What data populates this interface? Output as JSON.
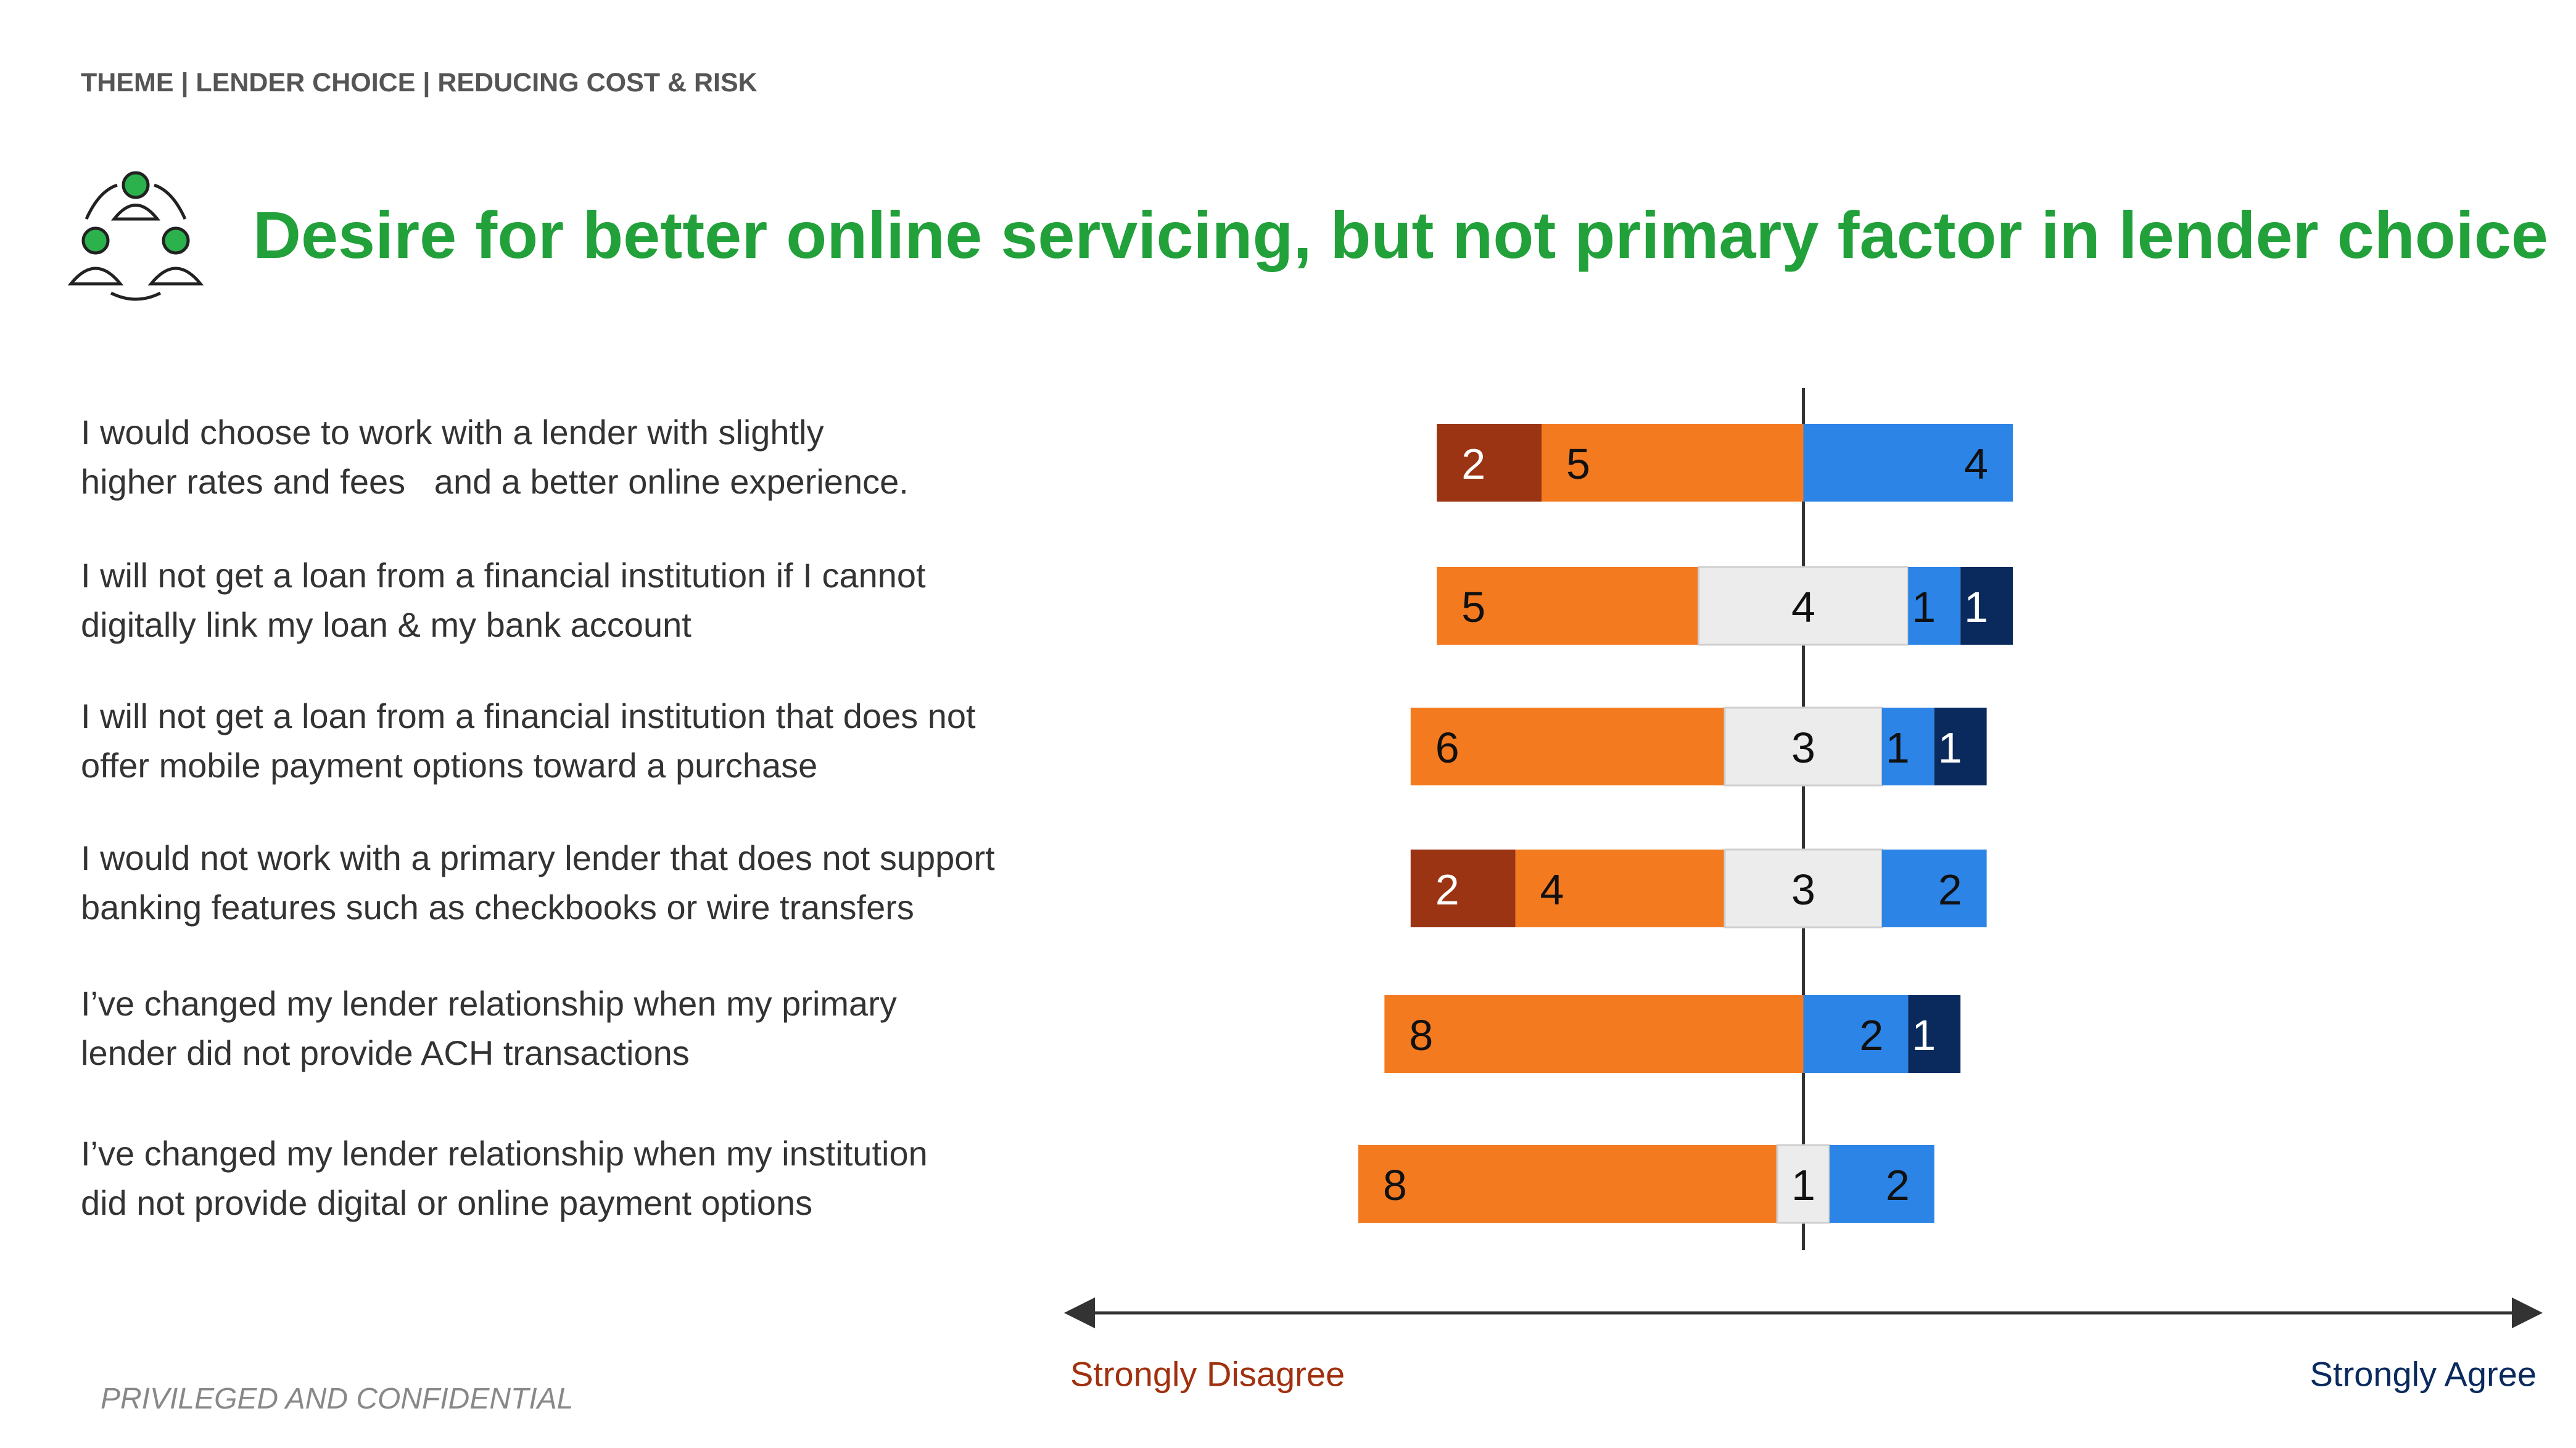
{
  "header": "THEME | LENDER CHOICE | REDUCING COST & RISK",
  "title": "Desire for better online servicing, but not primary factor in lender choice",
  "footer": "PRIVILEGED AND CONFIDENTIAL",
  "chart_data": {
    "type": "diverging_bar",
    "categories": [
      "I would choose to work with a lender with slightly\nhigher rates and fees   and a better online experience.",
      "I will not get a loan from a financial institution if I cannot\ndigitally link my loan & my bank account",
      "I will not get a loan from a financial institution that does not\noffer mobile payment options toward a purchase",
      "I would not work with a primary lender that does not support\nbanking features such as checkbooks or wire transfers",
      "I’ve changed my lender relationship when my primary\nlender did not provide ACH transactions",
      "I’ve changed my lender relationship when my institution\ndid not provide digital or online payment options"
    ],
    "series": [
      {
        "color": "#9a3412",
        "values": [
          2,
          null,
          null,
          2,
          null,
          null
        ]
      },
      {
        "color": "#f47a20",
        "values": [
          5,
          5,
          6,
          4,
          8,
          8
        ]
      },
      {
        "color": "#ececec",
        "values": [
          null,
          4,
          3,
          3,
          null,
          1
        ]
      },
      {
        "color": "#2c84e6",
        "values": [
          4,
          1,
          1,
          2,
          2,
          2
        ]
      },
      {
        "color": "#0a2a5e",
        "values": [
          null,
          1,
          1,
          null,
          1,
          null
        ]
      }
    ],
    "center_series": 2,
    "xlim": [
      -14,
      14
    ],
    "axis_labels": {
      "left": "Strongly Disagree",
      "right": "Strongly Agree"
    },
    "axis_label_colors": {
      "left": "#a0300e",
      "right": "#0a2a5e"
    }
  }
}
